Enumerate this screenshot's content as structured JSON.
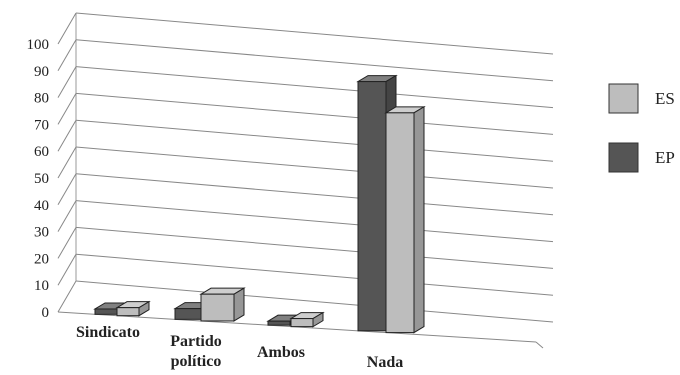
{
  "chart_data": {
    "type": "bar",
    "title": "",
    "xlabel": "",
    "ylabel": "",
    "categories": [
      [
        "Sindicato"
      ],
      [
        "Partido",
        "político"
      ],
      [
        "Ambos"
      ],
      [
        "Nada"
      ]
    ],
    "series": [
      {
        "name": "EP",
        "values": [
          2,
          4,
          1.5,
          93
        ],
        "color": "#555555"
      },
      {
        "name": "ES",
        "values": [
          3,
          10,
          3,
          82
        ],
        "color": "#bdbdbd"
      }
    ],
    "ylim": [
      0,
      100
    ],
    "yticks": [
      0,
      10,
      20,
      30,
      40,
      50,
      60,
      70,
      80,
      90,
      100
    ],
    "legend_order": [
      "ES",
      "EP"
    ],
    "legend_position": "right",
    "grid": true,
    "style": "3d"
  }
}
